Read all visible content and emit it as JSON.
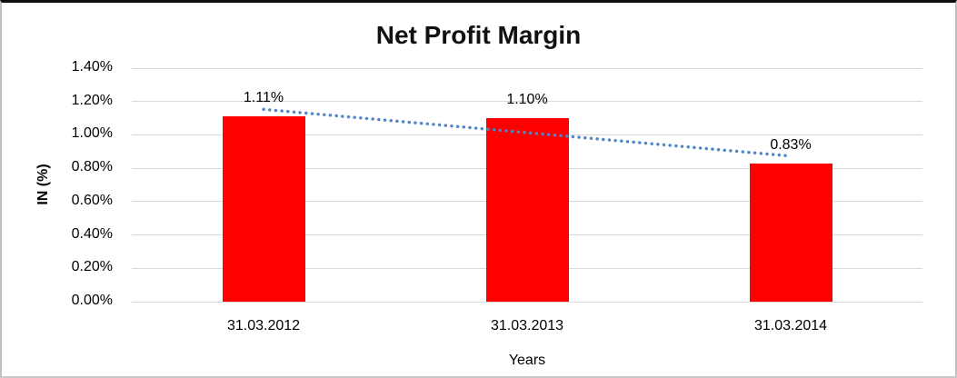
{
  "chart": {
    "title": "Net Profit Margin",
    "y_axis_title": "IN (%)",
    "x_axis_title": "Years"
  },
  "chart_data": {
    "type": "bar",
    "title": "Net Profit Margin",
    "xlabel": "Years",
    "ylabel": "IN (%)",
    "categories": [
      "31.03.2012",
      "31.03.2013",
      "31.03.2014"
    ],
    "values": [
      1.11,
      1.1,
      0.83
    ],
    "data_labels": [
      "1.11%",
      "1.10%",
      "0.83%"
    ],
    "y_ticks": {
      "values": [
        0.0,
        0.2,
        0.4,
        0.6,
        0.8,
        1.0,
        1.2,
        1.4
      ],
      "labels": [
        "0.00%",
        "0.20%",
        "0.40%",
        "0.60%",
        "0.80%",
        "1.00%",
        "1.20%",
        "1.40%"
      ]
    },
    "ylim": [
      0,
      1.4
    ],
    "grid": "horizontal",
    "legend": "none",
    "trendline": {
      "type": "linear",
      "style": "dotted",
      "start_value": 1.153,
      "end_value": 0.873
    },
    "colors": {
      "bar": "#ff0000",
      "trendline": "#4e87c8",
      "gridline": "#d9d9d9",
      "text": "#000000",
      "background": "#ffffff"
    }
  }
}
